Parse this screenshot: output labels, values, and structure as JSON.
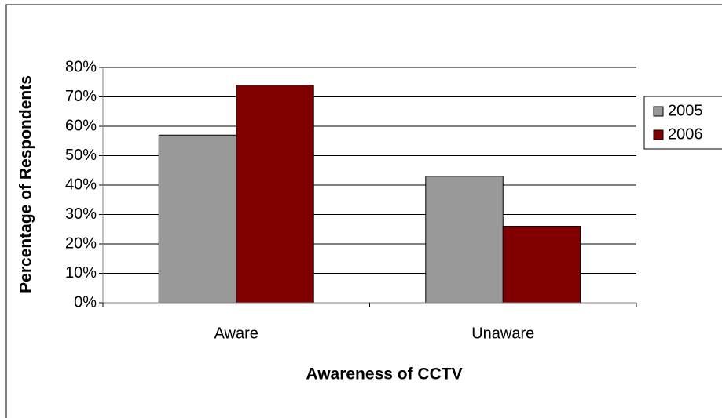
{
  "chart_data": {
    "type": "bar",
    "x_label": "Awareness of CCTV",
    "y_label": "Percentage of Respondents",
    "categories": [
      "Aware",
      "Unaware"
    ],
    "series": [
      {
        "name": "2005",
        "color": "#999999",
        "values": [
          57,
          43
        ]
      },
      {
        "name": "2006",
        "color": "#800000",
        "values": [
          74,
          26
        ]
      }
    ],
    "ylim": [
      0,
      80
    ],
    "yticks": [
      {
        "value": 0,
        "label": "0%"
      },
      {
        "value": 10,
        "label": "10%"
      },
      {
        "value": 20,
        "label": "20%"
      },
      {
        "value": 30,
        "label": "30%"
      },
      {
        "value": 40,
        "label": "40%"
      },
      {
        "value": 50,
        "label": "50%"
      },
      {
        "value": 60,
        "label": "60%"
      },
      {
        "value": 70,
        "label": "70%"
      },
      {
        "value": 80,
        "label": "80%"
      }
    ],
    "grid": true,
    "legend": "right"
  }
}
